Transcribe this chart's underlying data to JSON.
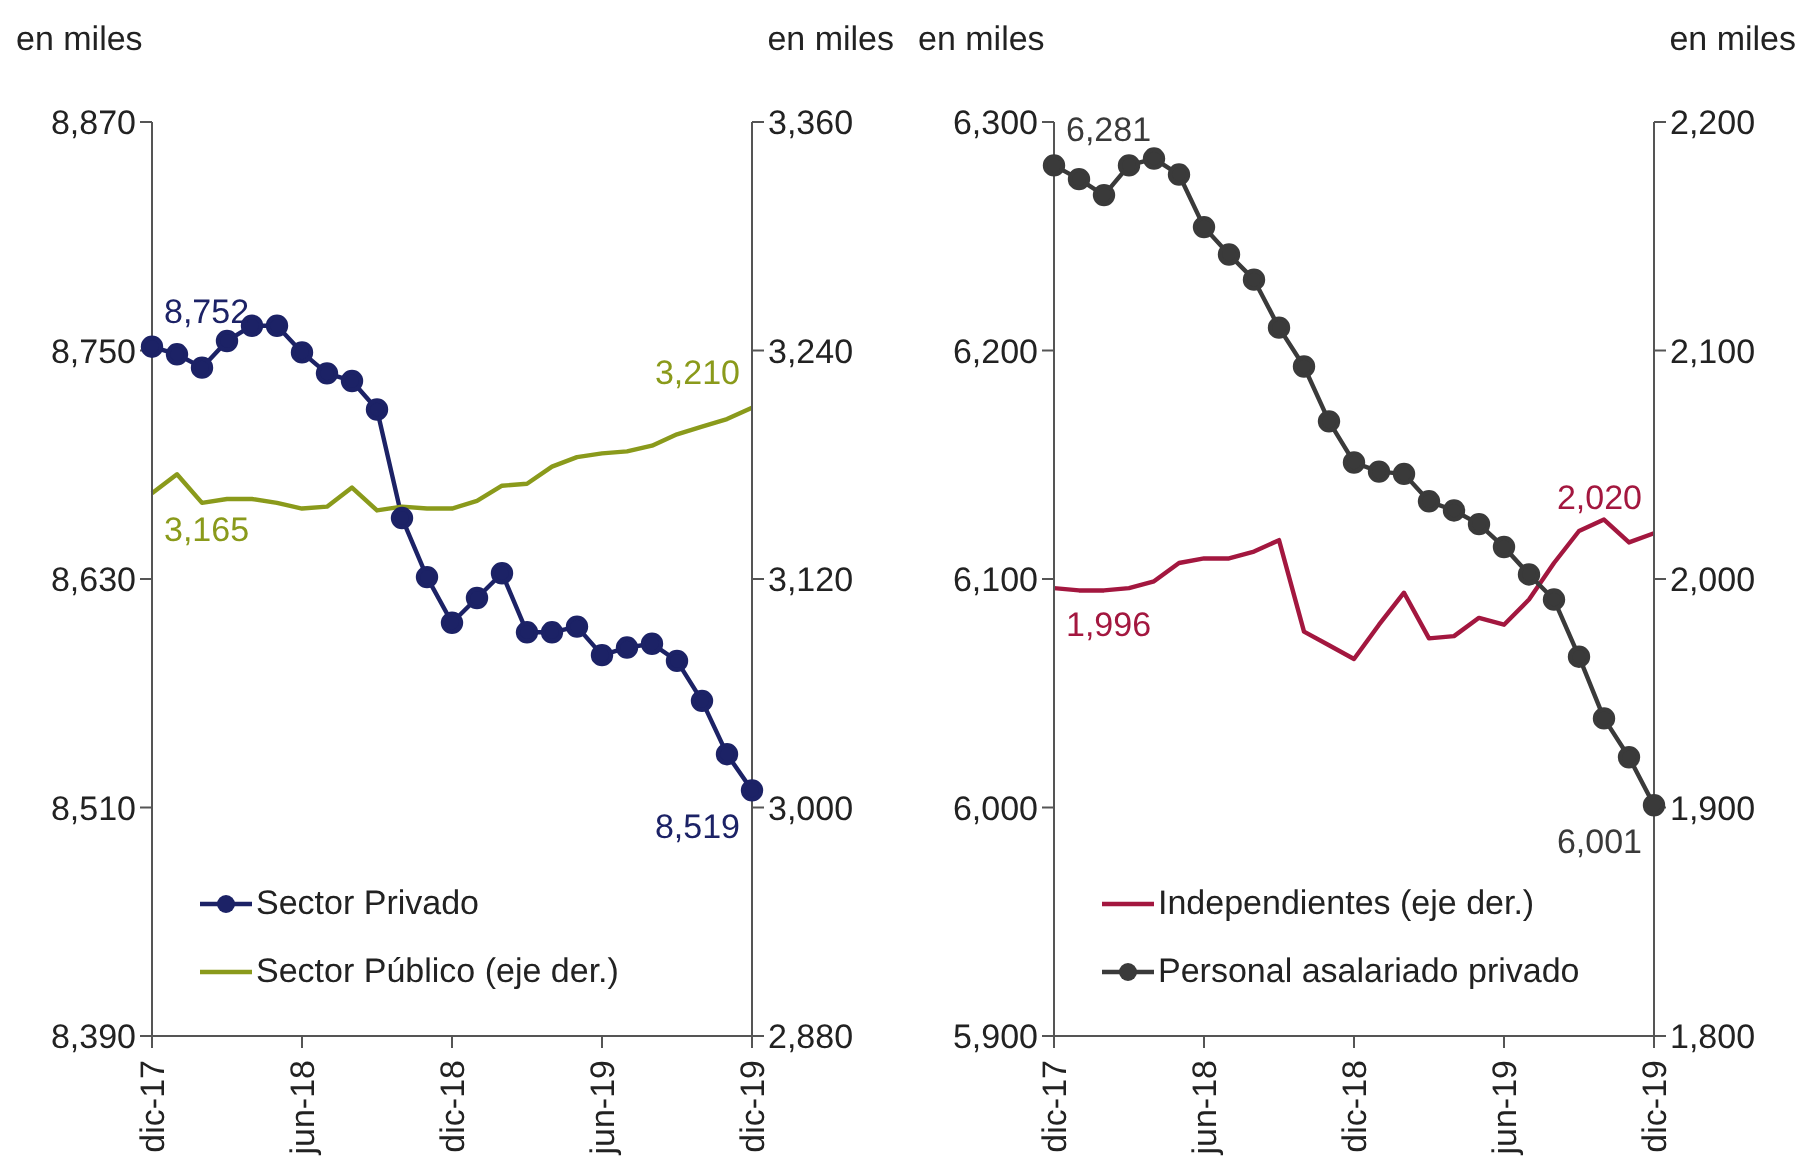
{
  "chart_data": [
    {
      "type": "line",
      "ylabel": "en miles",
      "y2label": "en miles",
      "legend": "bottom left",
      "categories": [
        "dic-17",
        null,
        null,
        null,
        null,
        null,
        "jun-18",
        null,
        null,
        null,
        null,
        null,
        "dic-18",
        null,
        null,
        null,
        null,
        null,
        "jun-19",
        null,
        null,
        null,
        null,
        null,
        "dic-19"
      ],
      "ylim": [
        8390,
        8870
      ],
      "yticks": [
        {
          "value": 8390,
          "label": "8,390"
        },
        {
          "value": 8510,
          "label": "8,510"
        },
        {
          "value": 8630,
          "label": "8,630"
        },
        {
          "value": 8750,
          "label": "8,750"
        },
        {
          "value": 8870,
          "label": "8,870"
        }
      ],
      "y2lim": [
        2880,
        3360
      ],
      "y2ticks": [
        {
          "value": 2880,
          "label": "2,880"
        },
        {
          "value": 3000,
          "label": "3,000"
        },
        {
          "value": 3120,
          "label": "3,120"
        },
        {
          "value": 3240,
          "label": "3,240"
        },
        {
          "value": 3360,
          "label": "3,360"
        }
      ],
      "series": [
        {
          "name": "Sector Privado",
          "color": "#1c2266",
          "marker": "circle",
          "values": [
            8752,
            8748,
            8741,
            8755,
            8763,
            8763,
            8749,
            8738,
            8734,
            8719,
            8662,
            8631,
            8607,
            8620,
            8633,
            8602,
            8602,
            8605,
            8590,
            8594,
            8596,
            8587,
            8566,
            8538,
            8519
          ],
          "value_labels": [
            "8,752",
            null,
            null,
            null,
            null,
            null,
            null,
            null,
            null,
            null,
            null,
            null,
            null,
            null,
            null,
            null,
            null,
            null,
            null,
            null,
            null,
            null,
            null,
            null,
            "8,519"
          ]
        },
        {
          "name": "Sector Público (eje der.)",
          "color": "#8a9a1b",
          "marker": "none",
          "axis": "y2",
          "values": [
            3165,
            3175,
            3160,
            3162,
            3162,
            3160,
            3157,
            3158,
            3168,
            3156,
            3158,
            3157,
            3157,
            3161,
            3169,
            3170,
            3179,
            3184,
            3186,
            3187,
            3190,
            3196,
            3200,
            3204,
            3210
          ],
          "value_labels": [
            "3,165",
            null,
            null,
            null,
            null,
            null,
            null,
            null,
            null,
            null,
            null,
            null,
            null,
            null,
            null,
            null,
            null,
            null,
            null,
            null,
            null,
            null,
            null,
            null,
            "3,210"
          ]
        }
      ]
    },
    {
      "type": "line",
      "ylabel": "en miles",
      "y2label": "en miles",
      "legend": "bottom left",
      "categories": [
        "dic-17",
        null,
        null,
        null,
        null,
        null,
        "jun-18",
        null,
        null,
        null,
        null,
        null,
        "dic-18",
        null,
        null,
        null,
        null,
        null,
        "jun-19",
        null,
        null,
        null,
        null,
        null,
        "dic-19"
      ],
      "ylim": [
        5900,
        6300
      ],
      "yticks": [
        {
          "value": 5900,
          "label": "5,900"
        },
        {
          "value": 6000,
          "label": "6,000"
        },
        {
          "value": 6100,
          "label": "6,100"
        },
        {
          "value": 6200,
          "label": "6,200"
        },
        {
          "value": 6300,
          "label": "6,300"
        }
      ],
      "y2lim": [
        1800,
        2200
      ],
      "y2ticks": [
        {
          "value": 1800,
          "label": "1,800"
        },
        {
          "value": 1900,
          "label": "1,900"
        },
        {
          "value": 2000,
          "label": "2,000"
        },
        {
          "value": 2100,
          "label": "2,100"
        },
        {
          "value": 2200,
          "label": "2,200"
        }
      ],
      "series": [
        {
          "name": "Independientes (eje der.)",
          "color": "#a3173f",
          "marker": "none",
          "axis": "y2",
          "values": [
            1996,
            1995,
            1995,
            1996,
            1999,
            2007,
            2009,
            2009,
            2012,
            2017,
            1977,
            1971,
            1965,
            1980,
            1994,
            1974,
            1975,
            1983,
            1980,
            1991,
            2007,
            2021,
            2026,
            2016,
            2020
          ],
          "value_labels": [
            "1,996",
            null,
            null,
            null,
            null,
            null,
            null,
            null,
            null,
            null,
            null,
            null,
            null,
            null,
            null,
            null,
            null,
            null,
            null,
            null,
            null,
            null,
            null,
            null,
            "2,020"
          ]
        },
        {
          "name": "Personal asalariado privado",
          "color": "#3a3a3a",
          "marker": "circle",
          "values": [
            6281,
            6275,
            6268,
            6281,
            6284,
            6277,
            6254,
            6242,
            6231,
            6210,
            6193,
            6169,
            6151,
            6147,
            6146,
            6134,
            6130,
            6124,
            6114,
            6102,
            6091,
            6066,
            6039,
            6022,
            6001
          ],
          "value_labels": [
            "6,281",
            null,
            null,
            null,
            null,
            null,
            null,
            null,
            null,
            null,
            null,
            null,
            null,
            null,
            null,
            null,
            null,
            null,
            null,
            null,
            null,
            null,
            null,
            null,
            "6,001"
          ]
        }
      ]
    }
  ]
}
